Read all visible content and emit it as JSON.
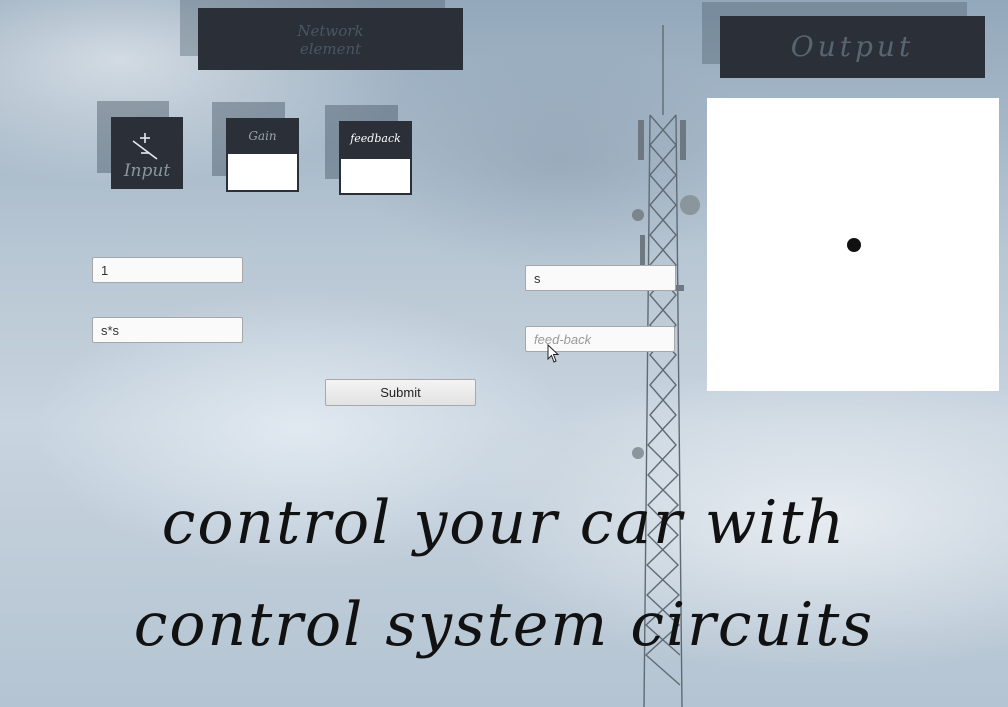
{
  "header": {
    "network_label": "Network\nelement",
    "output_label": "Output"
  },
  "palette": {
    "tiles": [
      {
        "name": "input-tile",
        "label": "Input",
        "symbol": "± sum"
      },
      {
        "name": "gain-tile",
        "label": "Gain"
      },
      {
        "name": "feedback-tile",
        "label": "feedback"
      }
    ]
  },
  "form": {
    "left_top_value": "1",
    "left_bottom_value": "s*s",
    "right_top_value": "s",
    "right_bottom_value": "",
    "right_bottom_placeholder": "feed-back",
    "submit_label": "Submit"
  },
  "tagline": {
    "line1": "control your car with",
    "line2": "control system circuits"
  },
  "colors": {
    "panel": "#2b3038",
    "canvas": "#ffffff",
    "dot": "#111111"
  },
  "icons": [
    "sum-junction-icon",
    "mouse-cursor-icon",
    "tower-image"
  ]
}
